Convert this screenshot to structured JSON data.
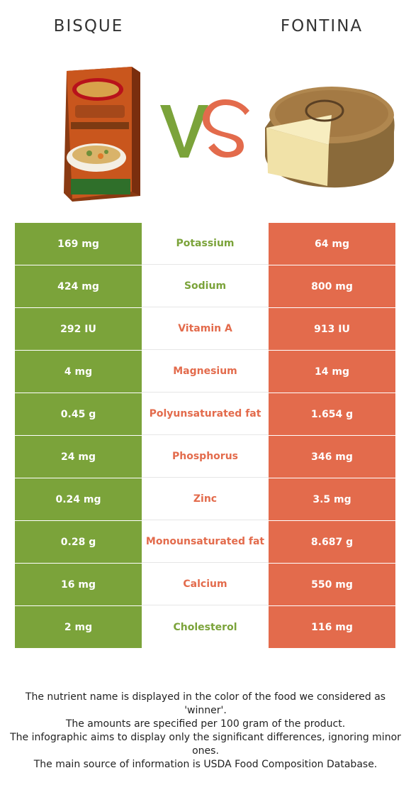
{
  "header": {
    "left_title": "BISQUE",
    "right_title": "FONTINA",
    "vs_text": "VS"
  },
  "colors": {
    "winner_left": "#7ba33a",
    "winner_right": "#e36b4c"
  },
  "rows": [
    {
      "left": "169 mg",
      "nutrient": "Potassium",
      "right": "64 mg",
      "winner": "left"
    },
    {
      "left": "424 mg",
      "nutrient": "Sodium",
      "right": "800 mg",
      "winner": "left"
    },
    {
      "left": "292 IU",
      "nutrient": "Vitamin A",
      "right": "913 IU",
      "winner": "right"
    },
    {
      "left": "4 mg",
      "nutrient": "Magnesium",
      "right": "14 mg",
      "winner": "right"
    },
    {
      "left": "0.45 g",
      "nutrient": "Polyunsaturated fat",
      "right": "1.654 g",
      "winner": "right"
    },
    {
      "left": "24 mg",
      "nutrient": "Phosphorus",
      "right": "346 mg",
      "winner": "right"
    },
    {
      "left": "0.24 mg",
      "nutrient": "Zinc",
      "right": "3.5 mg",
      "winner": "right"
    },
    {
      "left": "0.28 g",
      "nutrient": "Monounsaturated fat",
      "right": "8.687 g",
      "winner": "right"
    },
    {
      "left": "16 mg",
      "nutrient": "Calcium",
      "right": "550 mg",
      "winner": "right"
    },
    {
      "left": "2 mg",
      "nutrient": "Cholesterol",
      "right": "116 mg",
      "winner": "left"
    }
  ],
  "footer": {
    "line1": "The nutrient name is displayed in the color of the food we considered as 'winner'.",
    "line2": "The amounts are specified per 100 gram of the product.",
    "line3": "The infographic aims to display only the significant differences, ignoring minor ones.",
    "line4": "The main source of information is USDA Food Composition Database."
  }
}
